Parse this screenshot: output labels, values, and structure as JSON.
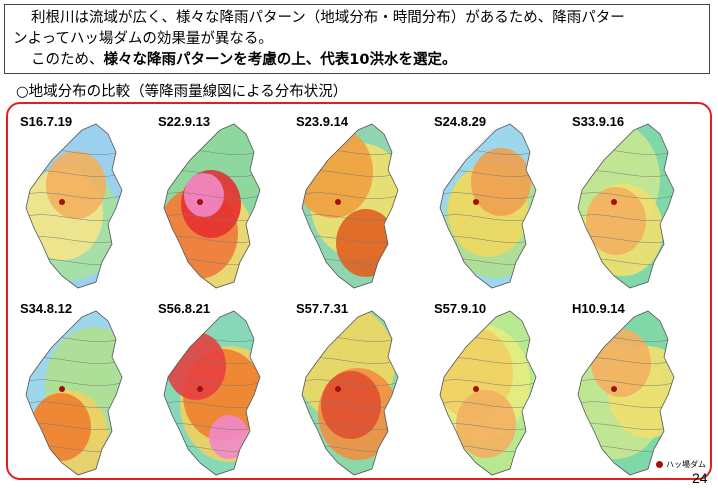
{
  "intro": {
    "line1": "利根川は流域が広く、様々な降雨パターン（地域分布・時間分布）があるため、降雨パター",
    "line2": "ンよってハッ場ダムの効果量が異なる。",
    "line3_prefix": "このため、",
    "line3_bold": "様々な降雨パターンを考慮の上、代表10洪水を選定。"
  },
  "subtitle": "○地域分布の比較（等降雨量線図による分布状況）",
  "maps": [
    {
      "label": "S16.7.19",
      "palette": [
        "#9bd0ee",
        "#a8e0a0",
        "#f4e58a",
        "#f3b060"
      ]
    },
    {
      "label": "S22.9.13",
      "palette": [
        "#8ed8a0",
        "#f3d76c",
        "#ee7a3a",
        "#e63030",
        "#f08ac8"
      ]
    },
    {
      "label": "S23.9.14",
      "palette": [
        "#8fd6b0",
        "#f0e070",
        "#f0a040",
        "#e06020"
      ]
    },
    {
      "label": "S24.8.29",
      "palette": [
        "#9cd7ec",
        "#b0e090",
        "#f0d860",
        "#f0a050"
      ]
    },
    {
      "label": "S33.9.16",
      "palette": [
        "#80d8a8",
        "#c8e890",
        "#f0e070",
        "#f3b060"
      ]
    },
    {
      "label": "S34.8.12",
      "palette": [
        "#9cd7ec",
        "#b0e090",
        "#f0d060",
        "#f08030"
      ]
    },
    {
      "label": "S56.8.21",
      "palette": [
        "#86d8b8",
        "#f0d060",
        "#ee8030",
        "#e64040",
        "#f08ac8"
      ]
    },
    {
      "label": "S57.7.31",
      "palette": [
        "#8cd8a8",
        "#f0d860",
        "#f09040",
        "#e05030"
      ]
    },
    {
      "label": "S57.9.10",
      "palette": [
        "#b8e890",
        "#e8ec80",
        "#f0d060",
        "#f3b060"
      ]
    },
    {
      "label": "H10.9.14",
      "palette": [
        "#80d8a8",
        "#c8e890",
        "#f0e070",
        "#f3b060"
      ]
    }
  ],
  "legend": {
    "label": "ハッ場ダム",
    "color": "#a01010"
  },
  "page_number": "24"
}
